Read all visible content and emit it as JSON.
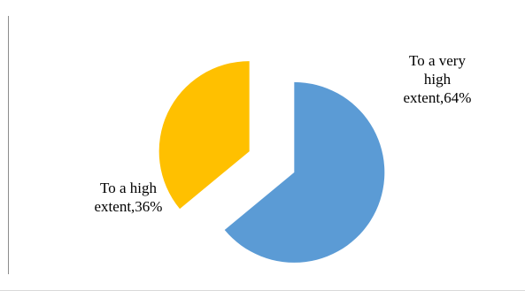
{
  "chart_data": {
    "type": "pie",
    "exploded": true,
    "slices": [
      {
        "label_lines": [
          "To a very",
          "high",
          "extent,64%"
        ],
        "value": 64,
        "color": "#5b9bd5"
      },
      {
        "label_lines": [
          "To a high",
          "extent,36%"
        ],
        "value": 36,
        "color": "#ffc000"
      }
    ],
    "legend": "none",
    "grid": false
  }
}
